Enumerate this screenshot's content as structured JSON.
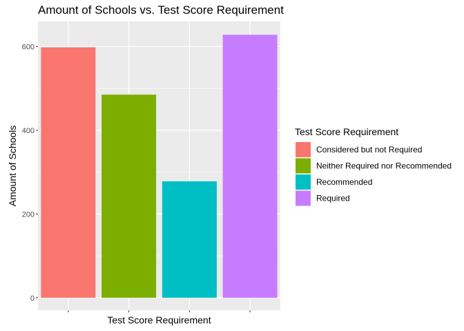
{
  "chart_data": {
    "type": "bar",
    "title": "Amount of Schools vs. Test Score Requirement",
    "xlabel": "Test Score Requirement",
    "ylabel": "Amount of Schools",
    "categories": [
      "Considered but not Required",
      "Neither Required nor Recommended",
      "Recommended",
      "Required"
    ],
    "values": [
      598,
      485,
      278,
      628
    ],
    "ylim": [
      -30,
      660
    ],
    "yticks": [
      0,
      200,
      400,
      600
    ],
    "ytick_labels": [
      "0",
      "200",
      "400",
      "600"
    ],
    "show_x_tick_labels": false,
    "grid": true,
    "legend": {
      "title": "Test Score Requirement",
      "placement": "right",
      "entries": [
        "Considered but not Required",
        "Neither Required nor Recommended",
        "Recommended",
        "Required"
      ]
    },
    "colors": [
      "#F8766D",
      "#7CAE00",
      "#00BFC4",
      "#C77CFF"
    ],
    "panel_background": "#EBEBEB",
    "grid_color": "#FFFFFF"
  }
}
